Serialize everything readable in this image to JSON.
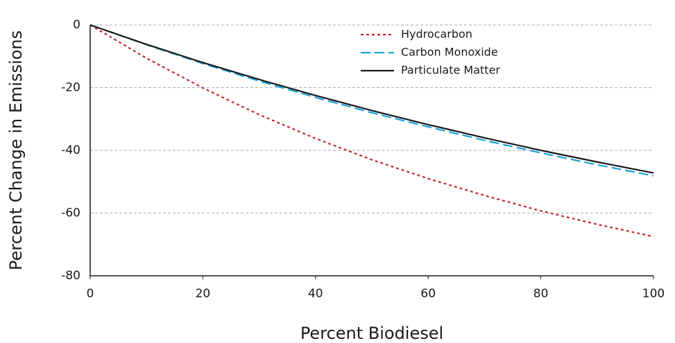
{
  "chart_data": {
    "type": "line",
    "x_label": "Percent Biodiesel",
    "y_label": "Percent Change in Emissions",
    "x": [
      0,
      10,
      20,
      30,
      40,
      50,
      60,
      70,
      80,
      90,
      100
    ],
    "series": [
      {
        "name": "Hydrocarbon",
        "color": "#c0282f",
        "dash": "dotted",
        "values": [
          0,
          -10.6,
          -20.1,
          -28.6,
          -36.2,
          -43.0,
          -49.0,
          -54.4,
          -59.3,
          -63.6,
          -67.5
        ]
      },
      {
        "name": "Carbon Monoxide",
        "color": "#1ba1d8",
        "dash": "dashed",
        "values": [
          0,
          -6.3,
          -12.3,
          -17.9,
          -23.1,
          -28.0,
          -32.5,
          -36.8,
          -40.8,
          -44.6,
          -48.1
        ]
      },
      {
        "name": "Particulate Matter",
        "color": "#1a1a1a",
        "dash": "solid",
        "values": [
          0,
          -6.2,
          -12.0,
          -17.4,
          -22.5,
          -27.3,
          -31.8,
          -36.0,
          -40.0,
          -43.7,
          -47.2
        ]
      }
    ],
    "xlim": [
      0,
      100
    ],
    "xticks": [
      0,
      20,
      40,
      60,
      80,
      100
    ],
    "ylim": [
      -80,
      0
    ],
    "yticks": [
      0,
      -20,
      -40,
      -60,
      -80
    ],
    "grid": true,
    "legend": "upper right"
  }
}
